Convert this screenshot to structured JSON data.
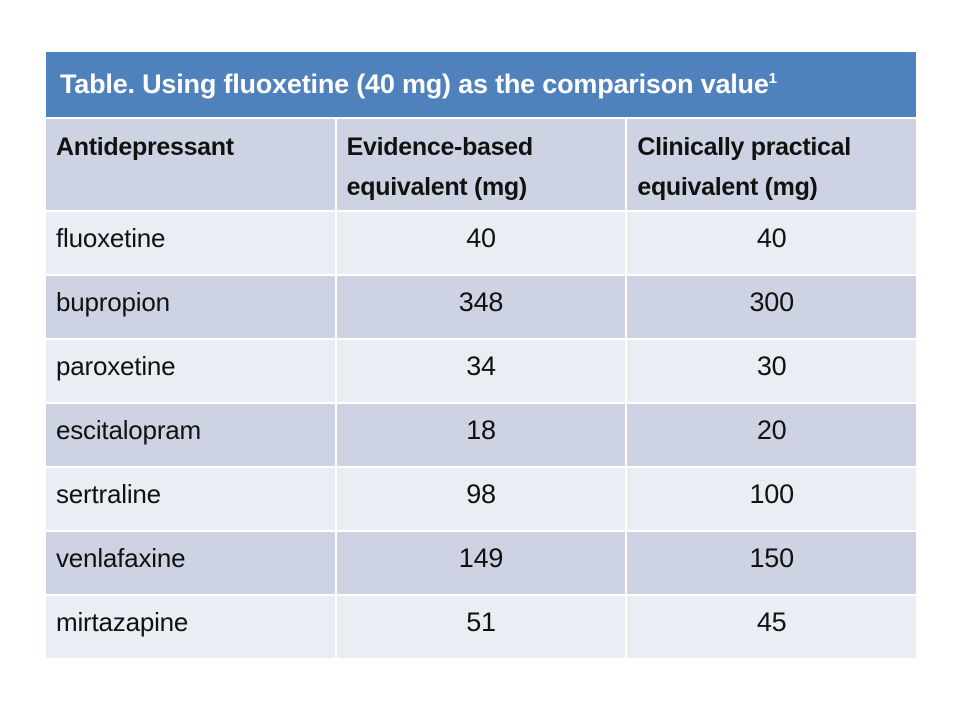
{
  "slide": {
    "title": "Table. Using fluoxetine (40 mg) as the comparison value",
    "title_superscript": "1"
  },
  "table": {
    "columns": [
      "Antidepressant",
      "Evidence-based equivalent (mg)",
      "Clinically practical equivalent (mg)"
    ],
    "rows": [
      {
        "drug": "fluoxetine",
        "evidence_mg": "40",
        "practical_mg": "40"
      },
      {
        "drug": "bupropion",
        "evidence_mg": "348",
        "practical_mg": "300"
      },
      {
        "drug": "paroxetine",
        "evidence_mg": "34",
        "practical_mg": "30"
      },
      {
        "drug": "escitalopram",
        "evidence_mg": "18",
        "practical_mg": "20"
      },
      {
        "drug": "sertraline",
        "evidence_mg": "98",
        "practical_mg": "100"
      },
      {
        "drug": "venlafaxine",
        "evidence_mg": "149",
        "practical_mg": "150"
      },
      {
        "drug": "mirtazapine",
        "evidence_mg": "51",
        "practical_mg": "45"
      }
    ],
    "colors": {
      "title_bg": "#4f81bd",
      "title_text": "#ffffff",
      "band_dark": "#cdd3e3",
      "band_light": "#e9edf4",
      "cell_text": "#111111",
      "gap": "#ffffff"
    }
  }
}
